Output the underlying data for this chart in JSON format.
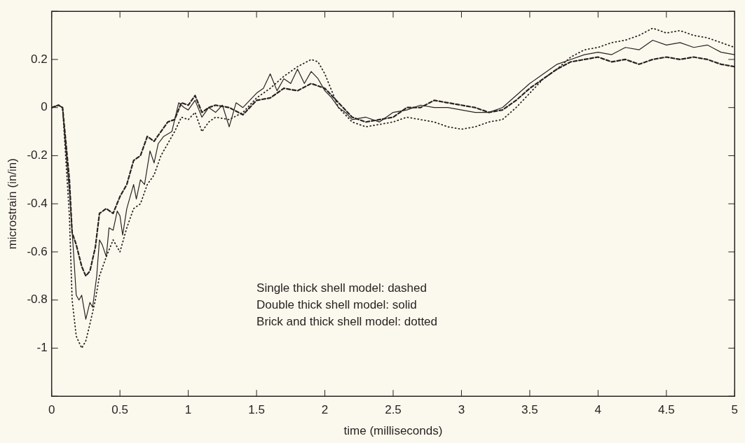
{
  "chart_data": {
    "type": "line",
    "xlabel": "time (milliseconds)",
    "ylabel": "microstrain (in/in)",
    "xlim": [
      0,
      5
    ],
    "xticks": [
      0,
      0.5,
      1,
      1.5,
      2,
      2.5,
      3,
      3.5,
      4,
      4.5,
      5
    ],
    "ylim": [
      -1.2,
      0.4
    ],
    "yticks": [
      {
        "value": -1.2,
        "label": null
      },
      -1,
      -0.8,
      -0.6,
      -0.4,
      -0.2,
      0,
      0.2,
      {
        "value": 0.4,
        "label": null
      }
    ],
    "legend": false,
    "marker": "none",
    "annotations": [
      "Single thick shell model: dashed",
      "Double thick shell model: solid",
      "Brick and thick shell model: dotted"
    ],
    "series": [
      {
        "color": "#2a2222",
        "line_style": "dashed",
        "x": [
          0,
          0.05,
          0.08,
          0.1,
          0.13,
          0.15,
          0.18,
          0.22,
          0.25,
          0.28,
          0.32,
          0.35,
          0.4,
          0.45,
          0.5,
          0.55,
          0.6,
          0.65,
          0.7,
          0.75,
          0.8,
          0.85,
          0.9,
          0.95,
          1.0,
          1.05,
          1.1,
          1.15,
          1.2,
          1.3,
          1.4,
          1.5,
          1.6,
          1.7,
          1.8,
          1.9,
          2.0,
          2.1,
          2.2,
          2.3,
          2.4,
          2.5,
          2.6,
          2.7,
          2.8,
          2.9,
          3.0,
          3.1,
          3.2,
          3.3,
          3.4,
          3.5,
          3.6,
          3.7,
          3.8,
          3.9,
          4.0,
          4.1,
          4.2,
          4.3,
          4.4,
          4.5,
          4.6,
          4.7,
          4.8,
          4.9,
          5.0
        ],
        "values": [
          0.0,
          0.01,
          0.0,
          -0.12,
          -0.3,
          -0.52,
          -0.57,
          -0.66,
          -0.7,
          -0.68,
          -0.58,
          -0.44,
          -0.42,
          -0.44,
          -0.37,
          -0.32,
          -0.22,
          -0.2,
          -0.12,
          -0.14,
          -0.1,
          -0.06,
          -0.05,
          0.02,
          0.01,
          0.05,
          -0.02,
          0.0,
          0.01,
          0.0,
          -0.03,
          0.03,
          0.04,
          0.08,
          0.07,
          0.1,
          0.08,
          0.02,
          -0.04,
          -0.06,
          -0.05,
          -0.04,
          0.0,
          0.0,
          0.03,
          0.02,
          0.01,
          0.0,
          -0.02,
          -0.01,
          0.03,
          0.08,
          0.12,
          0.16,
          0.19,
          0.2,
          0.21,
          0.19,
          0.2,
          0.18,
          0.2,
          0.21,
          0.2,
          0.21,
          0.2,
          0.18,
          0.17
        ]
      },
      {
        "color": "#2a2222",
        "line_style": "solid",
        "x": [
          0,
          0.05,
          0.08,
          0.1,
          0.13,
          0.16,
          0.18,
          0.2,
          0.22,
          0.25,
          0.28,
          0.3,
          0.33,
          0.35,
          0.37,
          0.4,
          0.42,
          0.45,
          0.48,
          0.5,
          0.52,
          0.55,
          0.6,
          0.62,
          0.65,
          0.68,
          0.72,
          0.75,
          0.78,
          0.82,
          0.88,
          0.93,
          0.97,
          1.0,
          1.05,
          1.1,
          1.15,
          1.2,
          1.25,
          1.3,
          1.35,
          1.4,
          1.45,
          1.5,
          1.55,
          1.6,
          1.65,
          1.7,
          1.75,
          1.8,
          1.85,
          1.9,
          1.95,
          2.0,
          2.05,
          2.1,
          2.15,
          2.2,
          2.3,
          2.4,
          2.5,
          2.6,
          2.7,
          2.8,
          2.9,
          3.0,
          3.1,
          3.2,
          3.3,
          3.4,
          3.5,
          3.6,
          3.7,
          3.8,
          3.9,
          4.0,
          4.1,
          4.2,
          4.3,
          4.4,
          4.5,
          4.6,
          4.7,
          4.8,
          4.9,
          5.0
        ],
        "values": [
          0.0,
          0.01,
          0.0,
          -0.15,
          -0.35,
          -0.6,
          -0.78,
          -0.8,
          -0.78,
          -0.88,
          -0.81,
          -0.83,
          -0.7,
          -0.55,
          -0.57,
          -0.62,
          -0.5,
          -0.51,
          -0.43,
          -0.45,
          -0.53,
          -0.42,
          -0.32,
          -0.38,
          -0.3,
          -0.32,
          -0.18,
          -0.23,
          -0.15,
          -0.12,
          -0.1,
          0.02,
          0.0,
          -0.01,
          0.03,
          -0.04,
          0.0,
          -0.02,
          0.01,
          -0.08,
          0.02,
          0.0,
          0.03,
          0.06,
          0.08,
          0.14,
          0.07,
          0.12,
          0.1,
          0.16,
          0.1,
          0.15,
          0.12,
          0.07,
          0.04,
          0.0,
          -0.02,
          -0.05,
          -0.04,
          -0.06,
          -0.02,
          -0.01,
          0.01,
          0.0,
          0.0,
          -0.01,
          -0.02,
          -0.02,
          0.0,
          0.05,
          0.1,
          0.14,
          0.18,
          0.2,
          0.22,
          0.23,
          0.22,
          0.25,
          0.24,
          0.28,
          0.26,
          0.27,
          0.25,
          0.26,
          0.23,
          0.22
        ]
      },
      {
        "color": "#2a2222",
        "line_style": "dotted",
        "x": [
          0,
          0.05,
          0.08,
          0.1,
          0.13,
          0.15,
          0.18,
          0.22,
          0.25,
          0.28,
          0.32,
          0.35,
          0.4,
          0.45,
          0.5,
          0.55,
          0.6,
          0.65,
          0.7,
          0.75,
          0.8,
          0.85,
          0.9,
          0.95,
          1.0,
          1.05,
          1.1,
          1.15,
          1.2,
          1.3,
          1.4,
          1.5,
          1.6,
          1.7,
          1.8,
          1.9,
          1.95,
          2.0,
          2.1,
          2.2,
          2.3,
          2.4,
          2.5,
          2.6,
          2.7,
          2.8,
          2.9,
          3.0,
          3.1,
          3.2,
          3.3,
          3.4,
          3.5,
          3.6,
          3.7,
          3.8,
          3.9,
          4.0,
          4.1,
          4.2,
          4.3,
          4.4,
          4.5,
          4.6,
          4.7,
          4.8,
          4.9,
          5.0
        ],
        "values": [
          0.0,
          0.01,
          0.0,
          -0.18,
          -0.45,
          -0.8,
          -0.95,
          -1.0,
          -0.97,
          -0.9,
          -0.8,
          -0.7,
          -0.62,
          -0.55,
          -0.6,
          -0.5,
          -0.42,
          -0.4,
          -0.32,
          -0.28,
          -0.2,
          -0.15,
          -0.1,
          -0.04,
          -0.05,
          -0.02,
          -0.1,
          -0.06,
          -0.04,
          -0.05,
          -0.02,
          0.04,
          0.08,
          0.13,
          0.17,
          0.2,
          0.19,
          0.14,
          0.0,
          -0.06,
          -0.08,
          -0.07,
          -0.06,
          -0.04,
          -0.05,
          -0.06,
          -0.08,
          -0.09,
          -0.08,
          -0.06,
          -0.05,
          0.0,
          0.06,
          0.12,
          0.16,
          0.21,
          0.24,
          0.25,
          0.27,
          0.28,
          0.3,
          0.33,
          0.31,
          0.32,
          0.3,
          0.29,
          0.27,
          0.25
        ]
      }
    ]
  }
}
